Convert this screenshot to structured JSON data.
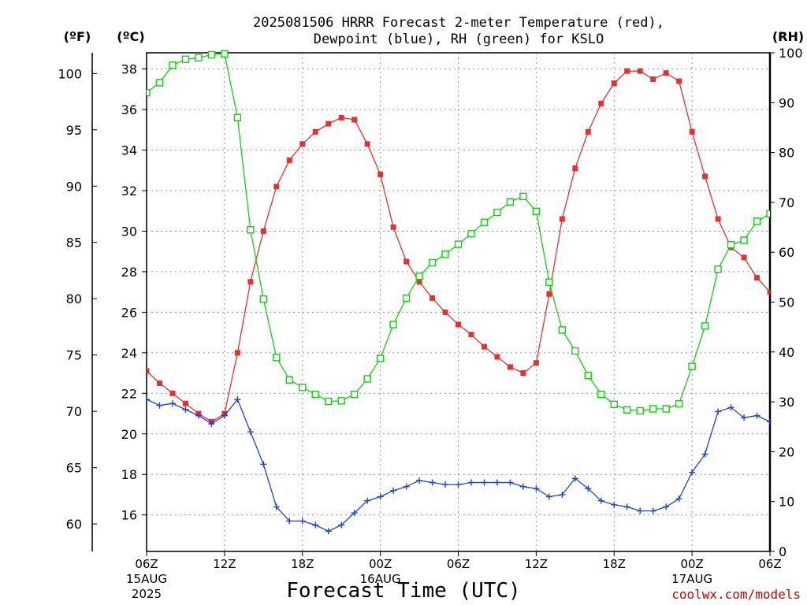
{
  "title_line1": "2025081506 HRRR Forecast 2-meter Temperature (red),",
  "title_line2": "Dewpoint (blue), RH (green) for KSLO",
  "unit_f": "(ºF)",
  "unit_c": "(ºC)",
  "unit_rh": "(RH)",
  "xlabel": "Forecast Time (UTC)",
  "credit": "coolwx.com/models",
  "colors": {
    "temperature": "#e83030",
    "dewpoint": "#2040e0",
    "rh": "#10d010",
    "credit": "#d00000"
  },
  "chart_data": {
    "type": "line",
    "grid": true,
    "x_hours": [
      6,
      7,
      8,
      9,
      10,
      11,
      12,
      13,
      14,
      15,
      16,
      17,
      18,
      19,
      20,
      21,
      22,
      23,
      24,
      25,
      26,
      27,
      28,
      29,
      30,
      31,
      32,
      33,
      34,
      35,
      36,
      37,
      38,
      39,
      40,
      41,
      42,
      43,
      44,
      45,
      46,
      47,
      48,
      49,
      50,
      51,
      52,
      53,
      54
    ],
    "x_ticks": [
      {
        "hour": 6,
        "label": "06Z",
        "sub1": "15AUG",
        "sub2": "2025"
      },
      {
        "hour": 12,
        "label": "12Z"
      },
      {
        "hour": 18,
        "label": "18Z"
      },
      {
        "hour": 24,
        "label": "00Z",
        "sub1": "16AUG"
      },
      {
        "hour": 30,
        "label": "06Z"
      },
      {
        "hour": 36,
        "label": "12Z"
      },
      {
        "hour": 42,
        "label": "18Z"
      },
      {
        "hour": 48,
        "label": "00Z",
        "sub1": "17AUG"
      },
      {
        "hour": 54,
        "label": "06Z"
      }
    ],
    "y_celsius": {
      "range": [
        14.2,
        38.8
      ],
      "ticks": [
        16,
        18,
        20,
        22,
        24,
        26,
        28,
        30,
        32,
        34,
        36,
        38
      ]
    },
    "y_fahrenheit": {
      "ticks": [
        60,
        65,
        70,
        75,
        80,
        85,
        90,
        95,
        100
      ]
    },
    "y_rh": {
      "range": [
        0,
        100
      ],
      "ticks": [
        0,
        10,
        20,
        30,
        40,
        50,
        60,
        70,
        80,
        90,
        100
      ]
    },
    "series": [
      {
        "key": "temperature",
        "axis": "celsius",
        "marker": "filled-square",
        "values": [
          23.1,
          22.5,
          22.0,
          21.5,
          21.0,
          20.6,
          21.0,
          24.0,
          27.5,
          30.0,
          32.2,
          33.5,
          34.3,
          34.9,
          35.3,
          35.6,
          35.5,
          34.3,
          32.8,
          30.2,
          28.5,
          27.5,
          26.7,
          26.0,
          25.4,
          24.9,
          24.3,
          23.8,
          23.3,
          23.0,
          23.5,
          26.9,
          30.6,
          33.1,
          34.9,
          36.3,
          37.3,
          37.9,
          37.9,
          37.5,
          37.8,
          37.4,
          34.9,
          32.7,
          30.6,
          29.2,
          28.7,
          27.7,
          27.0
        ]
      },
      {
        "key": "dewpoint",
        "axis": "celsius",
        "marker": "plus",
        "values": [
          21.7,
          21.4,
          21.5,
          21.2,
          20.9,
          20.5,
          20.9,
          21.7,
          20.1,
          18.5,
          16.4,
          15.7,
          15.7,
          15.5,
          15.2,
          15.5,
          16.1,
          16.7,
          16.9,
          17.2,
          17.4,
          17.7,
          17.6,
          17.5,
          17.5,
          17.6,
          17.6,
          17.6,
          17.6,
          17.4,
          17.3,
          16.9,
          17.0,
          17.8,
          17.3,
          16.7,
          16.5,
          16.4,
          16.2,
          16.2,
          16.4,
          16.8,
          18.1,
          19.0,
          21.1,
          21.3,
          20.8,
          20.9,
          20.6
        ]
      },
      {
        "key": "rh",
        "axis": "rh",
        "marker": "open-square",
        "values": [
          92,
          94,
          97.5,
          98.7,
          99,
          99.6,
          99.8,
          87,
          64.5,
          50.6,
          38.9,
          34.4,
          32.9,
          31.5,
          30.1,
          30.2,
          31.5,
          34.6,
          38.7,
          45.5,
          50.8,
          55.2,
          57.9,
          59.6,
          61.6,
          63.7,
          66,
          68,
          70.1,
          71.2,
          68.2,
          54,
          44.4,
          40.2,
          35.3,
          31.5,
          29.5,
          28.4,
          28.2,
          28.6,
          28.6,
          29.6,
          37.1,
          45.2,
          56.6,
          61.5,
          62.4,
          66.2,
          67.7
        ]
      }
    ]
  }
}
